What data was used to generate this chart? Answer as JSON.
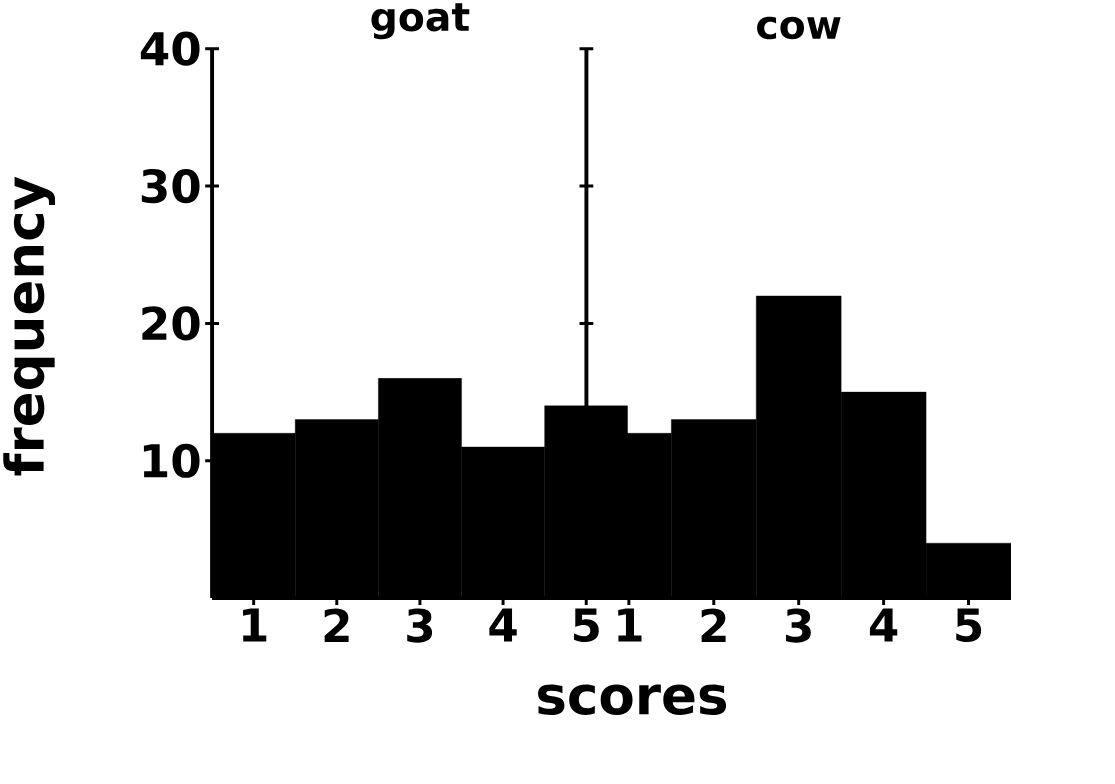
{
  "chart_data": [
    {
      "type": "bar",
      "title": "goat",
      "ylabel": "frequency",
      "xlabel": "scores",
      "categories": [
        "1",
        "2",
        "3",
        "4",
        "5"
      ],
      "values": [
        12,
        13,
        16,
        11,
        14
      ],
      "color": "#000000",
      "ylim": [
        0,
        40
      ],
      "yticks": [
        10,
        20,
        30,
        40
      ]
    },
    {
      "type": "bar",
      "title": "cow",
      "categories": [
        "1",
        "2",
        "3",
        "4",
        "5"
      ],
      "values": [
        12,
        13,
        22,
        15,
        4
      ],
      "color": "#000000",
      "ylim": [
        0,
        40
      ],
      "yticks": [
        10,
        20,
        30,
        40
      ],
      "tick_labels": "x"
    }
  ]
}
